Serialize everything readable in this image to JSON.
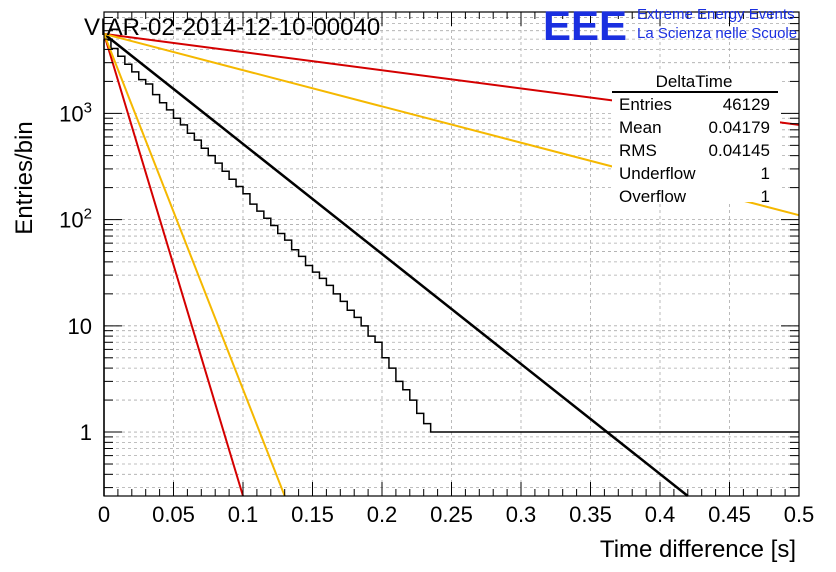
{
  "header": {
    "title": "VIAR-02-2014-12-10-00040",
    "logo_text": "EEE",
    "logo_line1": "Extreme Energy Events",
    "logo_line2": "La Scienza nelle Scuole"
  },
  "stats_box": {
    "title": "DeltaTime",
    "rows": [
      {
        "label": "Entries",
        "value": "46129"
      },
      {
        "label": "Mean",
        "value": "0.04179"
      },
      {
        "label": "RMS",
        "value": "0.04145"
      },
      {
        "label": "Underflow",
        "value": "1"
      },
      {
        "label": "Overflow",
        "value": "1"
      }
    ]
  },
  "colors": {
    "logo": "#1a2fe0",
    "histogram": "#000000",
    "fit": "#000000",
    "red": "#d40000",
    "orange": "#f5b800",
    "grid": "#aaaaaa"
  },
  "chart_data": {
    "type": "line",
    "title": "VIAR-02-2014-12-10-00040",
    "xlabel": "Time difference [s]",
    "ylabel": "Entries/bin",
    "xlim": [
      0,
      0.5
    ],
    "ylim": [
      0.25,
      9000
    ],
    "yscale": "log",
    "grid": true,
    "x_ticks": [
      0,
      0.05,
      0.1,
      0.15,
      0.2,
      0.25,
      0.3,
      0.35,
      0.4,
      0.45,
      0.5
    ],
    "x_tick_labels": [
      "0",
      "0.05",
      "0.1",
      "0.15",
      "0.2",
      "0.25",
      "0.3",
      "0.35",
      "0.4",
      "0.45",
      "0.5"
    ],
    "y_major_ticks": [
      1,
      10,
      100,
      1000
    ],
    "y_tick_labels": [
      "1",
      "10",
      "10^2",
      "10^3"
    ],
    "histogram": {
      "bin_width": 0.005,
      "counts": [
        4900,
        4080,
        3450,
        2900,
        2460,
        2080,
        1890,
        1500,
        1260,
        1080,
        900,
        780,
        650,
        560,
        470,
        400,
        340,
        285,
        240,
        205,
        175,
        140,
        120,
        103,
        88,
        74,
        64,
        52,
        45,
        37,
        32,
        28,
        24,
        20,
        17,
        14,
        12,
        10,
        8,
        7,
        5,
        4,
        3,
        2.5,
        2,
        1.5,
        1.2,
        1,
        1,
        1,
        1,
        1,
        1,
        1,
        1,
        1,
        1,
        1,
        1,
        1,
        1,
        1,
        1,
        1,
        1,
        1,
        1,
        1,
        1,
        1,
        1,
        1,
        1,
        1,
        1,
        1,
        1,
        1,
        1,
        1,
        1,
        1,
        1,
        1,
        1,
        1,
        1,
        1,
        1,
        1,
        1,
        1,
        1,
        1,
        1,
        1,
        1,
        1,
        1,
        1
      ]
    },
    "series": [
      {
        "style": "fit",
        "x": [
          0,
          0.42
        ],
        "y": [
          5600,
          0.25
        ]
      },
      {
        "style": "red",
        "x": [
          0,
          0.5
        ],
        "y": [
          5600,
          780
        ]
      },
      {
        "style": "orange",
        "x": [
          0,
          0.5
        ],
        "y": [
          5600,
          110
        ]
      },
      {
        "style": "red",
        "x": [
          0,
          0.1
        ],
        "y": [
          5600,
          0.25
        ]
      },
      {
        "style": "orange",
        "x": [
          0,
          0.13
        ],
        "y": [
          5600,
          0.25
        ]
      }
    ]
  }
}
